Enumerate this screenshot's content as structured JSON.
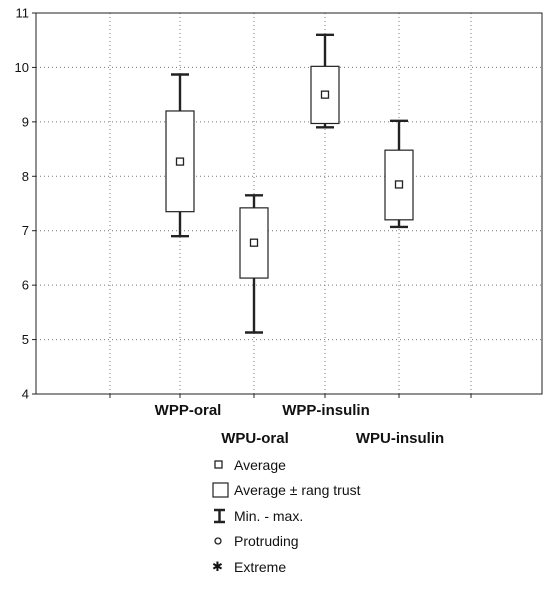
{
  "chart_data": {
    "type": "box",
    "categories": [
      "WPP-oral",
      "WPU-oral",
      "WPP-insulin",
      "WPU-insulin"
    ],
    "boxes": [
      {
        "name": "WPP-oral",
        "average": 8.27,
        "box_low": 7.35,
        "box_high": 9.2,
        "min": 6.9,
        "max": 9.87
      },
      {
        "name": "WPU-oral",
        "average": 6.78,
        "box_low": 6.13,
        "box_high": 7.42,
        "min": 5.13,
        "max": 7.65
      },
      {
        "name": "WPP-insulin",
        "average": 9.5,
        "box_low": 8.97,
        "box_high": 10.02,
        "min": 8.9,
        "max": 10.6
      },
      {
        "name": "WPU-insulin",
        "average": 7.85,
        "box_low": 7.2,
        "box_high": 8.48,
        "min": 7.07,
        "max": 9.02
      }
    ],
    "ylim": [
      4,
      11
    ],
    "yticks": [
      "4",
      "5",
      "6",
      "7",
      "8",
      "9",
      "10",
      "11"
    ],
    "grid": true,
    "legend_position": "bottom",
    "legend": [
      {
        "symbol": "square-marker",
        "label": "Average"
      },
      {
        "symbol": "box",
        "label": "Average ± rang trust"
      },
      {
        "symbol": "whisker",
        "label": "Min. - max."
      },
      {
        "symbol": "circle",
        "label": "Protruding"
      },
      {
        "symbol": "star",
        "label": "Extreme"
      }
    ]
  }
}
